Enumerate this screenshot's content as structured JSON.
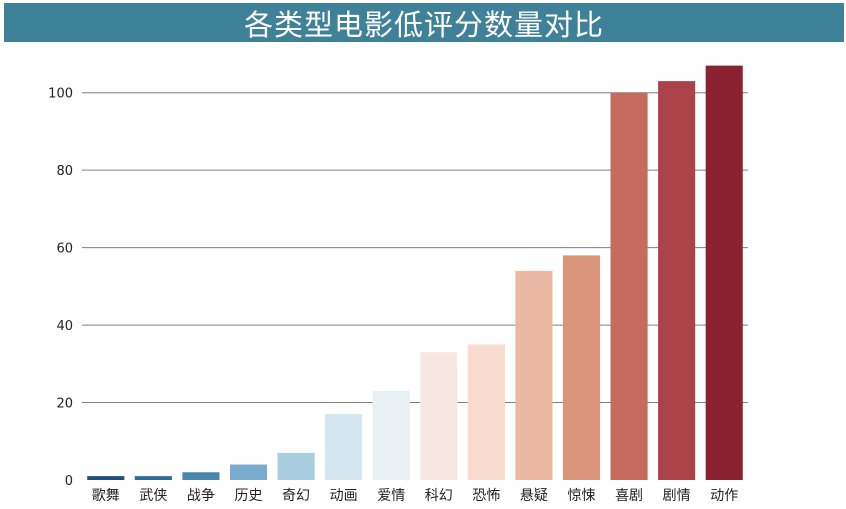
{
  "chart_data": {
    "type": "bar",
    "title": "各类型电影低评分数量对比",
    "xlabel": "",
    "ylabel": "",
    "categories": [
      "歌舞",
      "武侠",
      "战争",
      "历史",
      "奇幻",
      "动画",
      "爱情",
      "科幻",
      "恐怖",
      "悬疑",
      "惊悚",
      "喜剧",
      "剧情",
      "动作"
    ],
    "values": [
      1,
      1,
      2,
      4,
      7,
      17,
      23,
      33,
      35,
      54,
      58,
      100,
      103,
      107
    ],
    "ylim": [
      0,
      110
    ],
    "yticks": [
      "0",
      "20",
      "40",
      "60",
      "80",
      "100"
    ],
    "grid": "horizontal",
    "colors": [
      "#1f4e79",
      "#2f6c93",
      "#4a87ad",
      "#7aadcd",
      "#a9cde1",
      "#d4e6f0",
      "#e9f0f4",
      "#f7e8e4",
      "#f8dccd",
      "#ebb9a3",
      "#db957b",
      "#c66b5e",
      "#ad434a",
      "#8b2232"
    ]
  }
}
